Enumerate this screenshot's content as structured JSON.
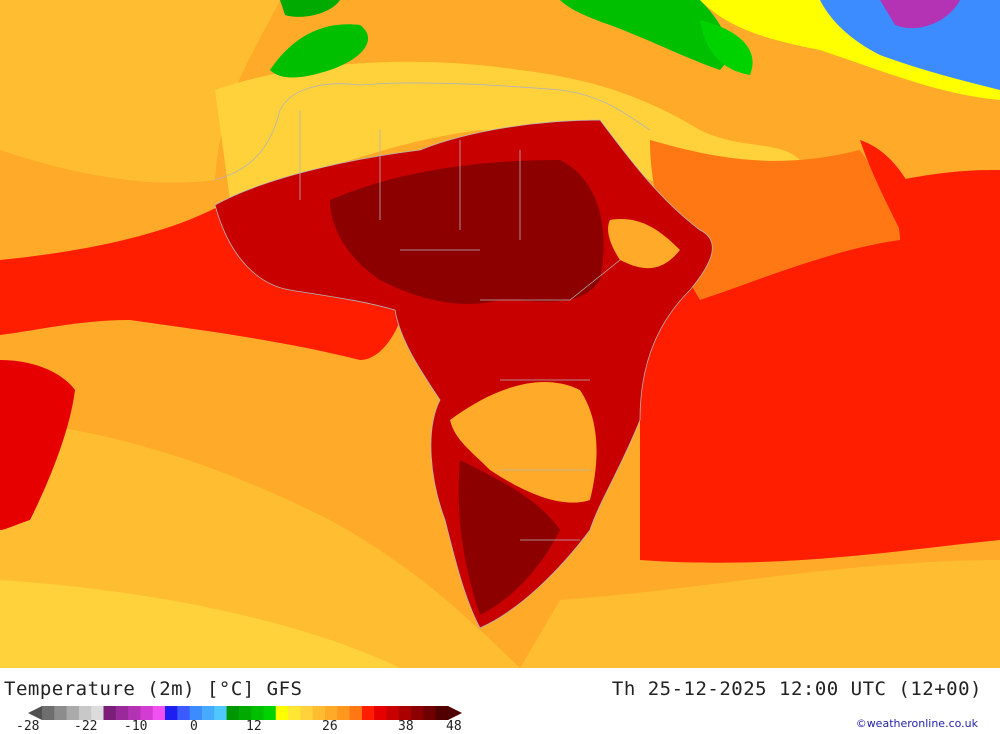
{
  "title": {
    "left": "Temperature (2m) [°C] GFS",
    "right": "Th 25-12-2025 12:00 UTC (12+00)"
  },
  "credit": "©weatheronline.co.uk",
  "legend": {
    "ticks": [
      "-28",
      "-22",
      "-10",
      "0",
      "12",
      "26",
      "38",
      "48"
    ],
    "colors": [
      "#6e6e6e",
      "#8c8c8c",
      "#aaaaaa",
      "#c8c8c8",
      "#dcdcdc",
      "#7a1e7a",
      "#9a2a9a",
      "#b432b4",
      "#d23cd2",
      "#f050f0",
      "#1e1ef0",
      "#3c5aff",
      "#3c8cff",
      "#46aaff",
      "#50c8ff",
      "#009600",
      "#00aa00",
      "#00be00",
      "#00d200",
      "#ffff00",
      "#ffe632",
      "#ffd23c",
      "#ffbe32",
      "#ffaa28",
      "#ff961e",
      "#ff7814",
      "#ff1e00",
      "#e60000",
      "#c80000",
      "#aa0000",
      "#8c0000",
      "#6e0000",
      "#500000"
    ]
  },
  "map_colors": {
    "ocean_warm": "#ffbe32",
    "ocean_mid": "#ffaa28",
    "hot": "#ff1e00",
    "very_hot": "#c80000",
    "extreme": "#8c0000",
    "cool_green": "#00be00",
    "sahara": "#ffd23c"
  }
}
